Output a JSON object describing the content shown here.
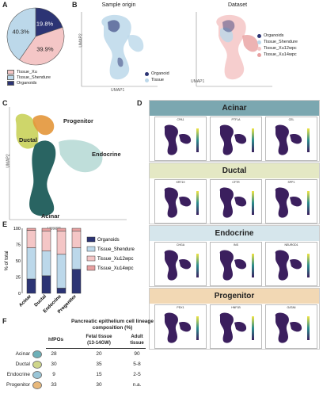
{
  "panels": {
    "A": "A",
    "B": "B",
    "C": "C",
    "D": "D",
    "E": "E",
    "F": "F"
  },
  "pie": {
    "slices": [
      {
        "label": "19.8%",
        "value": 19.8,
        "color": "#2c3474",
        "name": "Organoids"
      },
      {
        "label": "39.9%",
        "value": 39.9,
        "color": "#f4c6c6",
        "name": "Tissue_Xu"
      },
      {
        "label": "40.3%",
        "value": 40.3,
        "color": "#bcd8ea",
        "name": "Tissue_Shendure"
      }
    ],
    "legend": [
      {
        "label": "Tissue_Xu",
        "color": "#f4c6c6"
      },
      {
        "label": "Tissue_Shendure",
        "color": "#bcd8ea"
      },
      {
        "label": "Organoids",
        "color": "#2c3474"
      }
    ]
  },
  "umapB": {
    "left_title": "Sample origin",
    "right_title": "Dataset",
    "xlabel": "UMAP1",
    "ylabel": "UMAP2",
    "left_legend": [
      {
        "label": "Organoid",
        "color": "#2c3474"
      },
      {
        "label": "Tissue",
        "color": "#bcd8ea"
      }
    ],
    "right_legend": [
      {
        "label": "Organoids",
        "color": "#2c3474"
      },
      {
        "label": "Tissue_Shendure",
        "color": "#bcd8ea"
      },
      {
        "label": "Tissue_Xu12wpc",
        "color": "#f4c6c6"
      },
      {
        "label": "Tissue_Xu14wpc",
        "color": "#e8a0a0"
      }
    ]
  },
  "umapC": {
    "xlabel": "UMAP1",
    "ylabel": "UMAP2",
    "labels": {
      "progenitor": "Progenitor",
      "ductal": "Ductal",
      "endocrine": "Endocrine",
      "acinar": "Acinar"
    }
  },
  "sectionsD": [
    {
      "title": "Acinar",
      "bg": "#7ba7b0",
      "genes": [
        "CPA1",
        "PTF1A",
        "CEL"
      ]
    },
    {
      "title": "Ductal",
      "bg": "#e4e8c4",
      "genes": [
        "KRT19",
        "CFTR",
        "SPP1"
      ]
    },
    {
      "title": "Endocrine",
      "bg": "#d6e6ec",
      "genes": [
        "CHGA",
        "INS",
        "NEUROD1"
      ]
    },
    {
      "title": "Progenitor",
      "bg": "#f2d8b4",
      "genes": [
        "PDX1",
        "HNF1B",
        "GATA6"
      ]
    }
  ],
  "featAxis": {
    "x": "UMAP1",
    "y": "UMAP2"
  },
  "chart_data": {
    "type": "bar",
    "stacked": true,
    "categories": [
      "Acinar",
      "Ductal",
      "Endocrine",
      "Progenitor"
    ],
    "ylabel": "% of total",
    "ylim": [
      0,
      100
    ],
    "yticks": [
      "0",
      "25",
      "50",
      "75",
      "100"
    ],
    "series": [
      {
        "name": "Organoids",
        "color": "#2c3474",
        "values": [
          22,
          27,
          8,
          37
        ]
      },
      {
        "name": "Tissue_Shendure",
        "color": "#bcd8ea",
        "values": [
          48,
          38,
          52,
          33
        ]
      },
      {
        "name": "Tissue_Xu12wpc",
        "color": "#f4c6c6",
        "values": [
          27,
          31,
          36,
          26
        ]
      },
      {
        "name": "Tissue_Xu14wpc",
        "color": "#e8a0a0",
        "values": [
          3,
          4,
          4,
          4
        ]
      }
    ]
  },
  "tableF": {
    "title_line1": "Pancreatic epithelium cell lineage",
    "title_line2": "composition (%)",
    "headers": {
      "h1": "hfPOs",
      "h2a": "Fetal tissue",
      "h2b": "(13-14GW)",
      "h3a": "Adult",
      "h3b": "tissue"
    },
    "rows": [
      {
        "label": "Acinar",
        "c1": "28",
        "c2": "20",
        "c3": "90",
        "color": "#6db0b8"
      },
      {
        "label": "Ductal",
        "c1": "30",
        "c2": "35",
        "c3": "5-8",
        "color": "#cfd68a"
      },
      {
        "label": "Endocrine",
        "c1": "9",
        "c2": "15",
        "c3": "2-5",
        "color": "#9ac6d8"
      },
      {
        "label": "Progenitor",
        "c1": "33",
        "c2": "30",
        "c3": "n.a.",
        "color": "#e8b87a"
      }
    ]
  }
}
